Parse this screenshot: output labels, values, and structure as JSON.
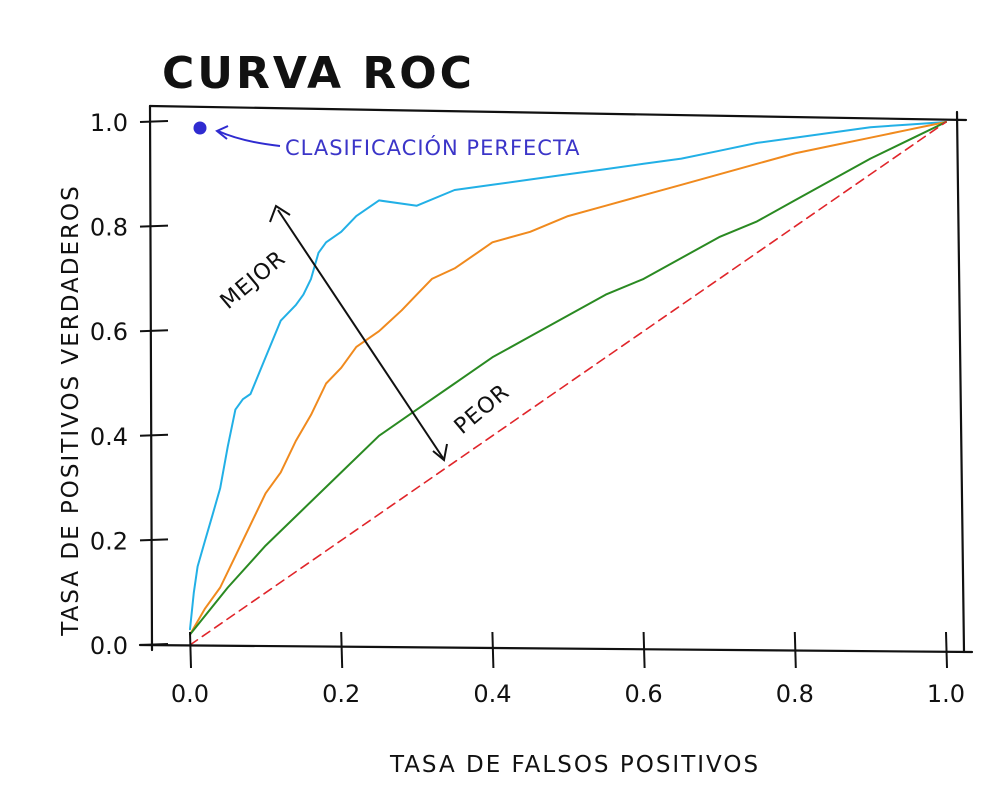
{
  "chart_data": {
    "type": "line",
    "title": "CURVA ROC",
    "xlabel": "TASA DE FALSOS POSITIVOS",
    "ylabel": "TASA DE POSITIVOS VERDADEROS",
    "xlim": [
      0,
      1
    ],
    "ylim": [
      0,
      1
    ],
    "x_ticks": [
      "0.0",
      "0.2",
      "0.4",
      "0.6",
      "0.8",
      "1.0"
    ],
    "y_ticks": [
      "0.0",
      "0.2",
      "0.4",
      "0.6",
      "0.8",
      "1.0"
    ],
    "grid": false,
    "legend": "none",
    "series": [
      {
        "color": "#22b0e6",
        "x": [
          0.0,
          0.005,
          0.01,
          0.02,
          0.03,
          0.04,
          0.05,
          0.06,
          0.07,
          0.08,
          0.1,
          0.12,
          0.14,
          0.15,
          0.16,
          0.17,
          0.18,
          0.2,
          0.22,
          0.25,
          0.3,
          0.35,
          0.4,
          0.45,
          0.5,
          0.55,
          0.6,
          0.65,
          0.7,
          0.75,
          0.8,
          0.85,
          0.9,
          0.95,
          1.0
        ],
        "y": [
          0.03,
          0.1,
          0.15,
          0.2,
          0.25,
          0.3,
          0.38,
          0.45,
          0.47,
          0.48,
          0.55,
          0.62,
          0.65,
          0.67,
          0.7,
          0.75,
          0.77,
          0.79,
          0.82,
          0.85,
          0.84,
          0.87,
          0.88,
          0.89,
          0.9,
          0.91,
          0.92,
          0.93,
          0.945,
          0.96,
          0.97,
          0.98,
          0.99,
          0.995,
          1.0
        ]
      },
      {
        "color": "#f08a1e",
        "x": [
          0.0,
          0.02,
          0.04,
          0.06,
          0.08,
          0.1,
          0.12,
          0.14,
          0.16,
          0.18,
          0.2,
          0.22,
          0.25,
          0.28,
          0.3,
          0.32,
          0.35,
          0.38,
          0.4,
          0.45,
          0.5,
          0.55,
          0.6,
          0.65,
          0.7,
          0.75,
          0.8,
          0.85,
          0.9,
          0.95,
          1.0
        ],
        "y": [
          0.02,
          0.07,
          0.11,
          0.17,
          0.23,
          0.29,
          0.33,
          0.39,
          0.44,
          0.5,
          0.53,
          0.57,
          0.6,
          0.64,
          0.67,
          0.7,
          0.72,
          0.75,
          0.77,
          0.79,
          0.82,
          0.84,
          0.86,
          0.88,
          0.9,
          0.92,
          0.94,
          0.955,
          0.97,
          0.985,
          1.0
        ]
      },
      {
        "color": "#2a8a22",
        "x": [
          0.0,
          0.05,
          0.1,
          0.15,
          0.2,
          0.25,
          0.3,
          0.35,
          0.4,
          0.45,
          0.5,
          0.55,
          0.6,
          0.65,
          0.7,
          0.75,
          0.8,
          0.85,
          0.9,
          0.95,
          1.0
        ],
        "y": [
          0.02,
          0.11,
          0.19,
          0.26,
          0.33,
          0.4,
          0.45,
          0.5,
          0.55,
          0.59,
          0.63,
          0.67,
          0.7,
          0.74,
          0.78,
          0.81,
          0.85,
          0.89,
          0.93,
          0.965,
          1.0
        ]
      },
      {
        "color": "#e0252a",
        "dashed": true,
        "x": [
          0.0,
          1.0
        ],
        "y": [
          0.0,
          1.0
        ]
      }
    ],
    "annotations": [
      {
        "text": "MEJOR"
      },
      {
        "text": "PEOR"
      },
      {
        "text": "CLASIFICACIÓN PERFECTA"
      }
    ],
    "perfect_point": {
      "x": 0.0,
      "y": 1.0,
      "color": "#2f2bd0"
    }
  }
}
